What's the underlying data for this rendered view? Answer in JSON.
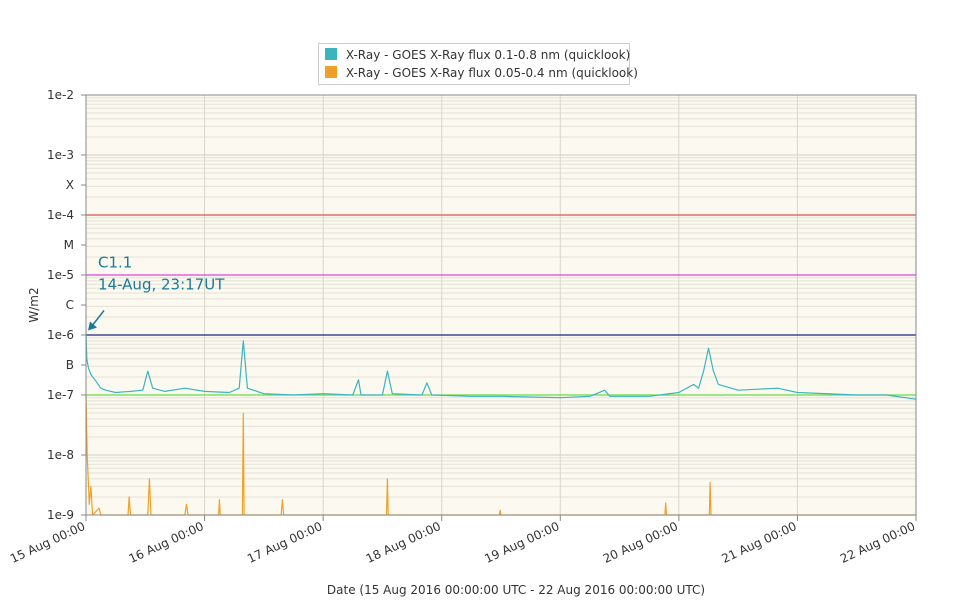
{
  "chart_data": {
    "type": "line",
    "title": "",
    "xlabel": "Date (15 Aug 2016 00:00:00 UTC - 22 Aug 2016 00:00:00 UTC)",
    "ylabel": "W/m2",
    "y_scale": "log",
    "ylim": [
      1e-09,
      0.01
    ],
    "xlim": [
      "2016-08-15T00:00",
      "2016-08-22T00:00"
    ],
    "x_ticks": [
      "15 Aug 00:00",
      "16 Aug 00:00",
      "17 Aug 00:00",
      "18 Aug 00:00",
      "19 Aug 00:00",
      "20 Aug 00:00",
      "21 Aug 00:00",
      "22 Aug 00:00"
    ],
    "y_ticks": [
      {
        "label": "1e-2",
        "value": 0.01
      },
      {
        "label": "1e-3",
        "value": 0.001
      },
      {
        "label": "X",
        "value": 0.000316
      },
      {
        "label": "1e-4",
        "value": 0.0001
      },
      {
        "label": "M",
        "value": 3.16e-05
      },
      {
        "label": "1e-5",
        "value": 1e-05
      },
      {
        "label": "C",
        "value": 3.16e-06
      },
      {
        "label": "1e-6",
        "value": 1e-06
      },
      {
        "label": "B",
        "value": 3.16e-07
      },
      {
        "label": "1e-7",
        "value": 1e-07
      },
      {
        "label": "1e-8",
        "value": 1e-08
      },
      {
        "label": "1e-9",
        "value": 1e-09
      }
    ],
    "threshold_lines": [
      {
        "value": 0.0001,
        "color": "#d9534f"
      },
      {
        "value": 1e-05,
        "color": "#e040e0"
      },
      {
        "value": 1e-06,
        "color": "#1a237e"
      },
      {
        "value": 1e-07,
        "color": "#66dd44"
      }
    ],
    "grid": true,
    "legend_position": "top-center",
    "series": [
      {
        "name": "X-Ray - GOES X-Ray flux 0.1-0.8 nm (quicklook)",
        "color": "#3db3c0",
        "points": [
          [
            "2016-08-15T00:00",
            1.1e-06
          ],
          [
            "2016-08-15T00:10",
            4e-07
          ],
          [
            "2016-08-15T00:30",
            2.8e-07
          ],
          [
            "2016-08-15T01:00",
            2.2e-07
          ],
          [
            "2016-08-15T02:00",
            1.7e-07
          ],
          [
            "2016-08-15T03:00",
            1.3e-07
          ],
          [
            "2016-08-15T04:00",
            1.2e-07
          ],
          [
            "2016-08-15T06:00",
            1.1e-07
          ],
          [
            "2016-08-15T09:00",
            1.15e-07
          ],
          [
            "2016-08-15T11:30",
            1.2e-07
          ],
          [
            "2016-08-15T12:30",
            2.5e-07
          ],
          [
            "2016-08-15T13:30",
            1.3e-07
          ],
          [
            "2016-08-15T16:00",
            1.15e-07
          ],
          [
            "2016-08-15T20:00",
            1.3e-07
          ],
          [
            "2016-08-16T00:00",
            1.15e-07
          ],
          [
            "2016-08-16T05:00",
            1.1e-07
          ],
          [
            "2016-08-16T07:00",
            1.3e-07
          ],
          [
            "2016-08-16T07:50",
            8e-07
          ],
          [
            "2016-08-16T08:40",
            1.3e-07
          ],
          [
            "2016-08-16T12:00",
            1.05e-07
          ],
          [
            "2016-08-16T18:00",
            1e-07
          ],
          [
            "2016-08-17T00:00",
            1.05e-07
          ],
          [
            "2016-08-17T06:00",
            1e-07
          ],
          [
            "2016-08-17T07:10",
            1.8e-07
          ],
          [
            "2016-08-17T07:40",
            1e-07
          ],
          [
            "2016-08-17T12:00",
            1e-07
          ],
          [
            "2016-08-17T13:00",
            2.5e-07
          ],
          [
            "2016-08-17T14:00",
            1.05e-07
          ],
          [
            "2016-08-17T20:00",
            1e-07
          ],
          [
            "2016-08-17T21:00",
            1.6e-07
          ],
          [
            "2016-08-17T22:00",
            1e-07
          ],
          [
            "2016-08-18T06:00",
            9.5e-08
          ],
          [
            "2016-08-18T12:00",
            9.5e-08
          ],
          [
            "2016-08-19T00:00",
            9e-08
          ],
          [
            "2016-08-19T06:00",
            9.5e-08
          ],
          [
            "2016-08-19T09:00",
            1.2e-07
          ],
          [
            "2016-08-19T10:00",
            9.5e-08
          ],
          [
            "2016-08-19T18:00",
            9.5e-08
          ],
          [
            "2016-08-20T00:00",
            1.1e-07
          ],
          [
            "2016-08-20T03:00",
            1.5e-07
          ],
          [
            "2016-08-20T04:00",
            1.3e-07
          ],
          [
            "2016-08-20T05:00",
            2.5e-07
          ],
          [
            "2016-08-20T06:00",
            6e-07
          ],
          [
            "2016-08-20T07:00",
            2.5e-07
          ],
          [
            "2016-08-20T08:00",
            1.5e-07
          ],
          [
            "2016-08-20T12:00",
            1.2e-07
          ],
          [
            "2016-08-20T20:00",
            1.3e-07
          ],
          [
            "2016-08-21T00:00",
            1.1e-07
          ],
          [
            "2016-08-21T12:00",
            1e-07
          ],
          [
            "2016-08-21T18:00",
            1e-07
          ],
          [
            "2016-08-22T00:00",
            8.5e-08
          ]
        ]
      },
      {
        "name": "X-Ray - GOES X-Ray flux 0.05-0.4 nm (quicklook)",
        "color": "#f0a028",
        "points": [
          [
            "2016-08-15T00:00",
            1e-07
          ],
          [
            "2016-08-15T00:15",
            1e-08
          ],
          [
            "2016-08-15T00:40",
            1.5e-09
          ],
          [
            "2016-08-15T01:00",
            3e-09
          ],
          [
            "2016-08-15T01:20",
            1e-09
          ],
          [
            "2016-08-15T02:40",
            1.3e-09
          ],
          [
            "2016-08-15T03:00",
            1e-09
          ],
          [
            "2016-08-15T08:30",
            1e-09
          ],
          [
            "2016-08-15T08:45",
            2e-09
          ],
          [
            "2016-08-15T09:00",
            1e-09
          ],
          [
            "2016-08-15T12:30",
            1e-09
          ],
          [
            "2016-08-15T12:50",
            4e-09
          ],
          [
            "2016-08-15T13:10",
            1e-09
          ],
          [
            "2016-08-15T20:00",
            1e-09
          ],
          [
            "2016-08-15T20:20",
            1.5e-09
          ],
          [
            "2016-08-15T20:40",
            1e-09
          ],
          [
            "2016-08-16T02:50",
            1e-09
          ],
          [
            "2016-08-16T03:00",
            1.8e-09
          ],
          [
            "2016-08-16T03:10",
            1e-09
          ],
          [
            "2016-08-16T07:40",
            1e-09
          ],
          [
            "2016-08-16T07:50",
            5e-08
          ],
          [
            "2016-08-16T08:00",
            1e-09
          ],
          [
            "2016-08-16T15:30",
            1e-09
          ],
          [
            "2016-08-16T15:45",
            1.8e-09
          ],
          [
            "2016-08-16T16:00",
            1e-09
          ],
          [
            "2016-08-17T12:50",
            1e-09
          ],
          [
            "2016-08-17T13:00",
            4e-09
          ],
          [
            "2016-08-17T13:10",
            1e-09
          ],
          [
            "2016-08-18T11:40",
            1e-09
          ],
          [
            "2016-08-18T11:50",
            1.2e-09
          ],
          [
            "2016-08-18T12:00",
            1e-09
          ],
          [
            "2016-08-19T21:10",
            1e-09
          ],
          [
            "2016-08-19T21:20",
            1.6e-09
          ],
          [
            "2016-08-19T21:30",
            1e-09
          ],
          [
            "2016-08-19T21:50",
            1e-09
          ],
          [
            "2016-08-20T06:10",
            1e-09
          ],
          [
            "2016-08-20T06:20",
            3.5e-09
          ],
          [
            "2016-08-20T06:30",
            1e-09
          ],
          [
            "2016-08-22T00:00",
            1e-09
          ]
        ]
      }
    ],
    "annotations": [
      {
        "lines": [
          "C1.1",
          "14-Aug, 23:17UT"
        ],
        "x": "2016-08-15T00:00",
        "y": 1.1e-06,
        "color": "#1a7a9a"
      }
    ]
  }
}
